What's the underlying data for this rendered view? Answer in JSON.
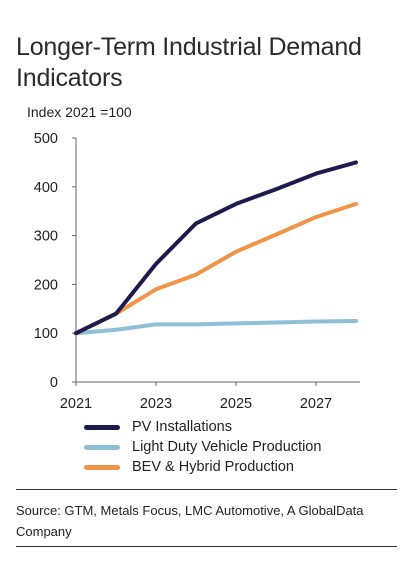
{
  "title": "Longer-Term Industrial Demand Indicators",
  "source": "Source: GTM, Metals Focus, LMC Automotive, A GlobalData Company",
  "chart_data": {
    "type": "line",
    "ylabel": "Index 2021 =100",
    "xlabel": "",
    "x": [
      2021,
      2022,
      2023,
      2024,
      2025,
      2026,
      2027,
      2028
    ],
    "xticks": [
      "2021",
      "2023",
      "2025",
      "2027"
    ],
    "xlim": [
      2021,
      2028
    ],
    "ylim": [
      0,
      500
    ],
    "yticks": [
      "0",
      "100",
      "200",
      "300",
      "400",
      "500"
    ],
    "grid": false,
    "legend_position": "bottom",
    "series": [
      {
        "name": "PV Installations",
        "color": "#1f1a4e",
        "values": [
          100,
          140,
          242,
          325,
          365,
          395,
          427,
          450
        ]
      },
      {
        "name": "Light Duty Vehicle Production",
        "color": "#8fbfd6",
        "values": [
          100,
          107,
          118,
          118,
          120,
          122,
          124,
          125
        ]
      },
      {
        "name": "BEV & Hybrid Production",
        "color": "#f0944a",
        "values": [
          100,
          140,
          190,
          220,
          267,
          302,
          338,
          365
        ]
      }
    ]
  }
}
